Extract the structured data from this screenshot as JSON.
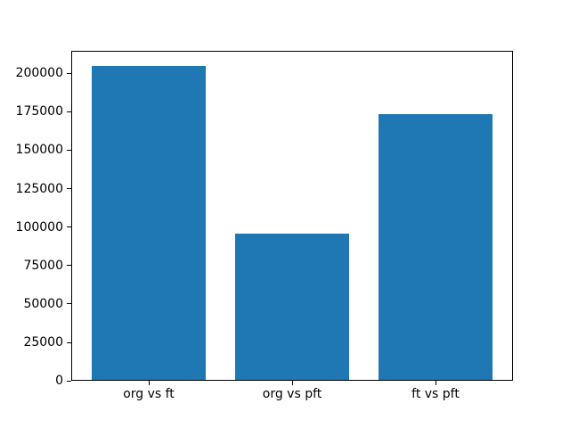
{
  "chart_data": {
    "type": "bar",
    "title": "",
    "xlabel": "",
    "ylabel": "",
    "categories": [
      "org vs ft",
      "org vs pft",
      "ft vs pft"
    ],
    "values": [
      204000,
      95000,
      173000
    ],
    "series_color": "#1f77b4",
    "yticks": [
      0,
      25000,
      50000,
      75000,
      100000,
      125000,
      150000,
      175000,
      200000
    ],
    "ylim": [
      0,
      214200
    ],
    "bar_width_fraction": 0.8,
    "grid": false,
    "legend": "none",
    "background": "#ffffff"
  }
}
